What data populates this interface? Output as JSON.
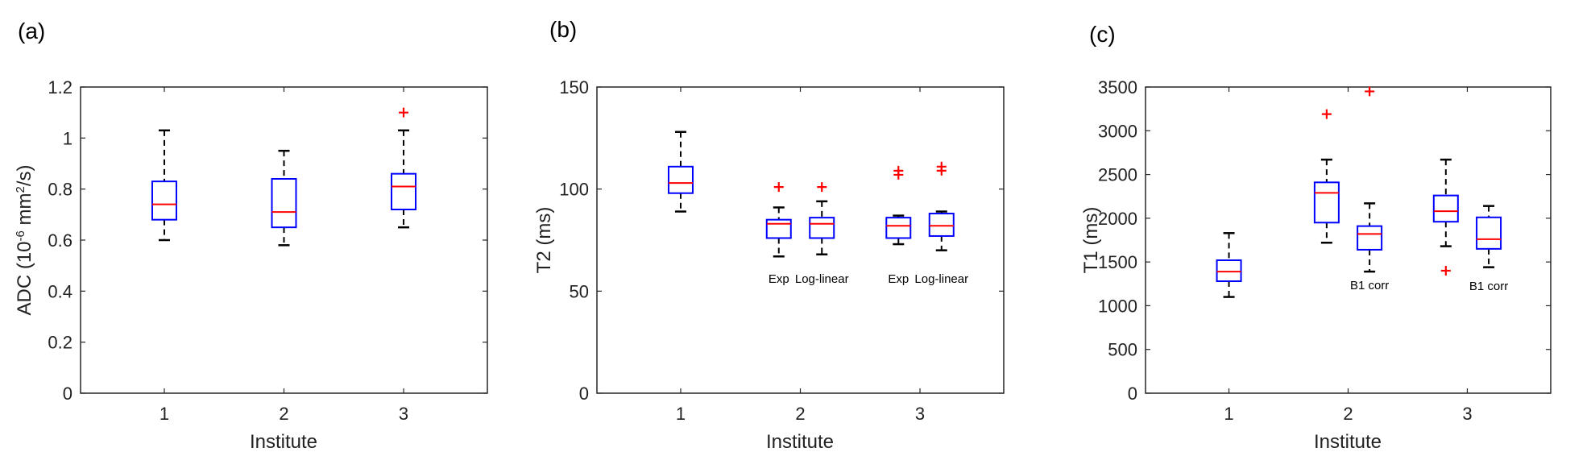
{
  "chart_data": [
    {
      "type": "box",
      "panel_label": "(a)",
      "ylabel_prefix": "ADC (10",
      "ylabel_exp1": "-6",
      "ylabel_mid": " mm",
      "ylabel_exp2": "2",
      "ylabel_suffix": "/s)",
      "xlabel": "Institute",
      "ylim": [
        0,
        1.2
      ],
      "yticks": [
        "0",
        "0.2",
        "0.4",
        "0.6",
        "0.8",
        "1",
        "1.2"
      ],
      "ytick_values": [
        0,
        0.2,
        0.4,
        0.6,
        0.8,
        1.0,
        1.2
      ],
      "xlim": [
        0.3,
        3.7
      ],
      "xticks": [
        "1",
        "2",
        "3"
      ],
      "xtick_values": [
        1,
        2,
        3
      ],
      "boxes": [
        {
          "x": 1,
          "min": 0.6,
          "q1": 0.68,
          "median": 0.74,
          "q3": 0.83,
          "max": 1.03,
          "outliers": []
        },
        {
          "x": 2,
          "min": 0.58,
          "q1": 0.65,
          "median": 0.71,
          "q3": 0.84,
          "max": 0.95,
          "outliers": []
        },
        {
          "x": 3,
          "min": 0.65,
          "q1": 0.72,
          "median": 0.81,
          "q3": 0.86,
          "max": 1.03,
          "outliers": [
            1.1
          ]
        }
      ],
      "annotations": []
    },
    {
      "type": "box",
      "panel_label": "(b)",
      "ylabel": "T2 (ms)",
      "xlabel": "Institute",
      "ylim": [
        0,
        150
      ],
      "yticks": [
        "0",
        "50",
        "100",
        "150"
      ],
      "ytick_values": [
        0,
        50,
        100,
        150
      ],
      "xlim": [
        0.3,
        3.7
      ],
      "xticks": [
        "1",
        "2",
        "3"
      ],
      "xtick_values": [
        1,
        2,
        3
      ],
      "boxes": [
        {
          "x": 1.0,
          "min": 89,
          "q1": 98,
          "median": 103,
          "q3": 111,
          "max": 128,
          "outliers": []
        },
        {
          "x": 1.82,
          "min": 67,
          "q1": 76,
          "median": 83,
          "q3": 85,
          "max": 91,
          "outliers": [
            101
          ]
        },
        {
          "x": 2.18,
          "min": 68,
          "q1": 76,
          "median": 83,
          "q3": 86,
          "max": 94,
          "outliers": [
            101
          ]
        },
        {
          "x": 2.82,
          "min": 73,
          "q1": 76,
          "median": 82,
          "q3": 86,
          "max": 87,
          "outliers": [
            107,
            109
          ]
        },
        {
          "x": 3.18,
          "min": 70,
          "q1": 77,
          "median": 82,
          "q3": 88,
          "max": 89,
          "outliers": [
            109,
            111
          ]
        }
      ],
      "annotations": [
        {
          "x": 1.82,
          "y": 54,
          "text": "Exp"
        },
        {
          "x": 2.18,
          "y": 54,
          "text": "Log-linear"
        },
        {
          "x": 2.82,
          "y": 54,
          "text": "Exp"
        },
        {
          "x": 3.18,
          "y": 54,
          "text": "Log-linear"
        }
      ]
    },
    {
      "type": "box",
      "panel_label": "(c)",
      "ylabel": "T1 (ms)",
      "xlabel": "Institute",
      "ylim": [
        0,
        3500
      ],
      "yticks": [
        "0",
        "500",
        "1000",
        "1500",
        "2000",
        "2500",
        "3000",
        "3500"
      ],
      "ytick_values": [
        0,
        500,
        1000,
        1500,
        2000,
        2500,
        3000,
        3500
      ],
      "xlim": [
        0.3,
        3.7
      ],
      "xticks": [
        "1",
        "2",
        "3"
      ],
      "xtick_values": [
        1,
        2,
        3
      ],
      "boxes": [
        {
          "x": 1.0,
          "min": 1100,
          "q1": 1280,
          "median": 1390,
          "q3": 1520,
          "max": 1830,
          "outliers": []
        },
        {
          "x": 1.82,
          "min": 1720,
          "q1": 1950,
          "median": 2290,
          "q3": 2410,
          "max": 2670,
          "outliers": [
            3190
          ]
        },
        {
          "x": 2.18,
          "min": 1390,
          "q1": 1640,
          "median": 1820,
          "q3": 1910,
          "max": 2170,
          "outliers": [
            3450
          ]
        },
        {
          "x": 2.82,
          "min": 1680,
          "q1": 1960,
          "median": 2080,
          "q3": 2260,
          "max": 2670,
          "outliers": [
            1400
          ]
        },
        {
          "x": 3.18,
          "min": 1440,
          "q1": 1650,
          "median": 1760,
          "q3": 2010,
          "max": 2140,
          "outliers": []
        }
      ],
      "annotations": [
        {
          "x": 2.18,
          "y": 1190,
          "text": "B1 corr"
        },
        {
          "x": 3.18,
          "y": 1180,
          "text": "B1 corr"
        }
      ]
    }
  ],
  "colors": {
    "box": "#0000ff",
    "median": "#ff0000",
    "outlier": "#ff0000",
    "whisker": "#000000",
    "axis": "#262626"
  }
}
